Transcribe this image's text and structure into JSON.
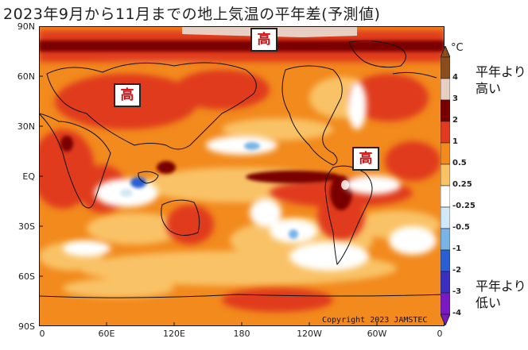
{
  "title": "2023年9月から11月までの地上気温の平年差(予測値)",
  "y_axis": {
    "ticks": [
      "90N",
      "60N",
      "30N",
      "EQ",
      "30S",
      "60S",
      "90S"
    ]
  },
  "x_axis": {
    "ticks": [
      "0",
      "60E",
      "120E",
      "180",
      "120W",
      "60W",
      "0"
    ]
  },
  "markers": {
    "high_label": "高"
  },
  "copyright": "Copyright 2023 JAMSTEC",
  "colorbar": {
    "unit": "°C",
    "labels": [
      "4",
      "3",
      "2",
      "1",
      "0.5",
      "0.25",
      "-0.25",
      "-0.5",
      "-1",
      "-2",
      "-3",
      "-4"
    ],
    "colors": [
      "#8c4d1c",
      "#e8cfc4",
      "#7a0000",
      "#e03a1f",
      "#f28a1d",
      "#f9c266",
      "#ffffff",
      "#d2e8f6",
      "#79b4e6",
      "#2a5fd1",
      "#3a2fbf",
      "#7a18c2"
    ]
  },
  "legend": {
    "above_normal": "平年より高い",
    "below_normal": "平年より低い"
  }
}
